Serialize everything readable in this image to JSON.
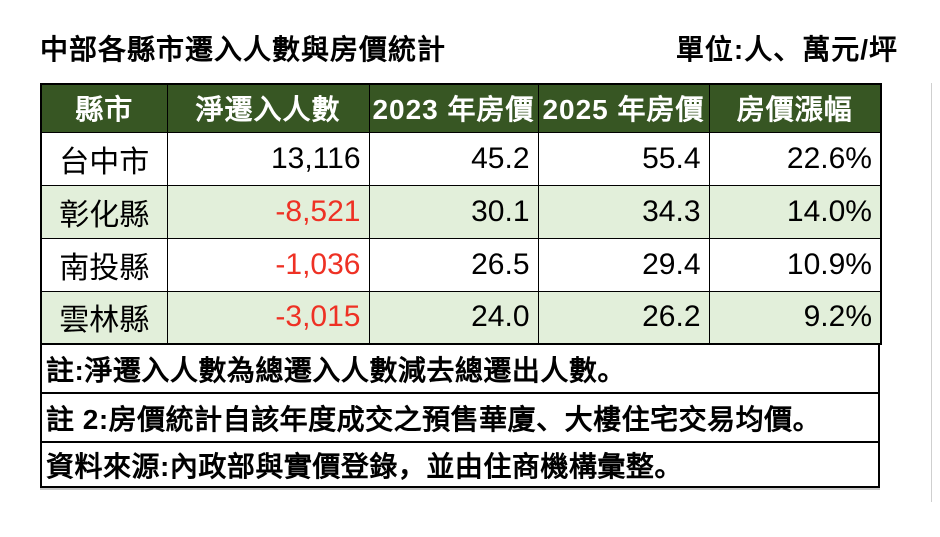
{
  "title": "中部各縣市遷入人數與房價統計",
  "unit_label": "單位:人、萬元/坪",
  "chart_data": {
    "type": "table",
    "title": "中部各縣市遷入人數與房價統計",
    "unit": "人、萬元/坪",
    "columns": [
      "縣市",
      "淨遷入人數",
      "2023 年房價",
      "2025 年房價",
      "房價漲幅"
    ],
    "rows": [
      [
        "台中市",
        13116,
        45.2,
        55.4,
        "22.6%"
      ],
      [
        "彰化縣",
        -8521,
        30.1,
        34.3,
        "14.0%"
      ],
      [
        "南投縣",
        -1036,
        26.5,
        29.4,
        "10.9%"
      ],
      [
        "雲林縣",
        -3015,
        24.0,
        26.2,
        "9.2%"
      ]
    ],
    "notes": [
      "註:淨遷入人數為總遷入人數減去總遷出人數。",
      "註 2:房價統計自該年度成交之預售華廈、大樓住宅交易均價。",
      "資料來源:內政部與實價登錄，並由住商機構彙整。"
    ]
  },
  "table": {
    "headers": {
      "county": "縣市",
      "net": "淨遷入人數",
      "p2023": "2023 年房價",
      "p2025": "2025 年房價",
      "change": "房價漲幅"
    },
    "rows": [
      {
        "county": "台中市",
        "net": "13,116",
        "p2023": "45.2",
        "p2025": "55.4",
        "change": "22.6%"
      },
      {
        "county": "彰化縣",
        "net": "-8,521",
        "p2023": "30.1",
        "p2025": "34.3",
        "change": "14.0%"
      },
      {
        "county": "南投縣",
        "net": "-1,036",
        "p2023": "26.5",
        "p2025": "29.4",
        "change": "10.9%"
      },
      {
        "county": "雲林縣",
        "net": "-3,015",
        "p2023": "24.0",
        "p2025": "26.2",
        "change": "9.2%"
      }
    ]
  },
  "notes": {
    "note1": "註:淨遷入人數為總遷入人數減去總遷出人數。",
    "note2": "註 2:房價統計自該年度成交之預售華廈、大樓住宅交易均價。",
    "source": "資料來源:內政部與實價登錄，並由住商機構彙整。"
  },
  "colors": {
    "header_bg": "#375623",
    "header_text": "#FFFFFF",
    "band_green": "#E2EFDA",
    "negative_red": "#EE3124",
    "border": "#000000"
  }
}
